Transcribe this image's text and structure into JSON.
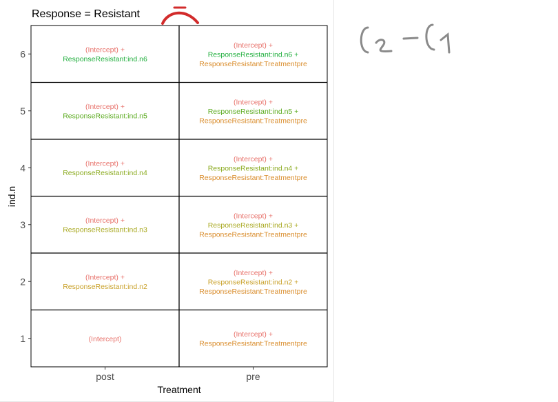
{
  "chart_data": {
    "type": "table",
    "title": "Response = Resistant",
    "xlabel": "Treatment",
    "ylabel": "ind.n",
    "x_categories": [
      "post",
      "pre"
    ],
    "y_categories": [
      "1",
      "2",
      "3",
      "4",
      "5",
      "6"
    ],
    "cells": [
      {
        "x": "post",
        "y": "1",
        "lines": [
          {
            "text": "(Intercept)",
            "color": "#e8736c"
          }
        ]
      },
      {
        "x": "pre",
        "y": "1",
        "lines": [
          {
            "text": "(Intercept) +",
            "color": "#e8736c"
          },
          {
            "text": "ResponseResistant:Treatmentpre",
            "color": "#d98c2b"
          }
        ]
      },
      {
        "x": "post",
        "y": "2",
        "lines": [
          {
            "text": "(Intercept) +",
            "color": "#e8736c"
          },
          {
            "text": "ResponseResistant:ind.n2",
            "color": "#c9a12a"
          }
        ]
      },
      {
        "x": "pre",
        "y": "2",
        "lines": [
          {
            "text": "(Intercept) +",
            "color": "#e8736c"
          },
          {
            "text": "ResponseResistant:ind.n2 +",
            "color": "#c9a12a"
          },
          {
            "text": "ResponseResistant:Treatmentpre",
            "color": "#d98c2b"
          }
        ]
      },
      {
        "x": "post",
        "y": "3",
        "lines": [
          {
            "text": "(Intercept) +",
            "color": "#e8736c"
          },
          {
            "text": "ResponseResistant:ind.n3",
            "color": "#a8a81f"
          }
        ]
      },
      {
        "x": "pre",
        "y": "3",
        "lines": [
          {
            "text": "(Intercept) +",
            "color": "#e8736c"
          },
          {
            "text": "ResponseResistant:ind.n3 +",
            "color": "#a8a81f"
          },
          {
            "text": "ResponseResistant:Treatmentpre",
            "color": "#d98c2b"
          }
        ]
      },
      {
        "x": "post",
        "y": "4",
        "lines": [
          {
            "text": "(Intercept) +",
            "color": "#e8736c"
          },
          {
            "text": "ResponseResistant:ind.n4",
            "color": "#8aaa1e"
          }
        ]
      },
      {
        "x": "pre",
        "y": "4",
        "lines": [
          {
            "text": "(Intercept) +",
            "color": "#e8736c"
          },
          {
            "text": "ResponseResistant:ind.n4 +",
            "color": "#8aaa1e"
          },
          {
            "text": "ResponseResistant:Treatmentpre",
            "color": "#d98c2b"
          }
        ]
      },
      {
        "x": "post",
        "y": "5",
        "lines": [
          {
            "text": "(Intercept) +",
            "color": "#e8736c"
          },
          {
            "text": "ResponseResistant:ind.n5",
            "color": "#5aaa1e"
          }
        ]
      },
      {
        "x": "pre",
        "y": "5",
        "lines": [
          {
            "text": "(Intercept) +",
            "color": "#e8736c"
          },
          {
            "text": "ResponseResistant:ind.n5 +",
            "color": "#5aaa1e"
          },
          {
            "text": "ResponseResistant:Treatmentpre",
            "color": "#d98c2b"
          }
        ]
      },
      {
        "x": "post",
        "y": "6",
        "lines": [
          {
            "text": "(Intercept) +",
            "color": "#e8736c"
          },
          {
            "text": "ResponseResistant:ind.n6",
            "color": "#1fae3c"
          }
        ]
      },
      {
        "x": "pre",
        "y": "6",
        "lines": [
          {
            "text": "(Intercept) +",
            "color": "#e8736c"
          },
          {
            "text": "ResponseResistant:ind.n6 +",
            "color": "#1fae3c"
          },
          {
            "text": "ResponseResistant:Treatmentpre",
            "color": "#d98c2b"
          }
        ]
      }
    ],
    "grid": false,
    "legend": "none"
  },
  "annotations": {
    "handwritten_note": "C2 - C1",
    "hat_mark_color": "#d22b2b",
    "ink_color": "#8a8a8a"
  }
}
